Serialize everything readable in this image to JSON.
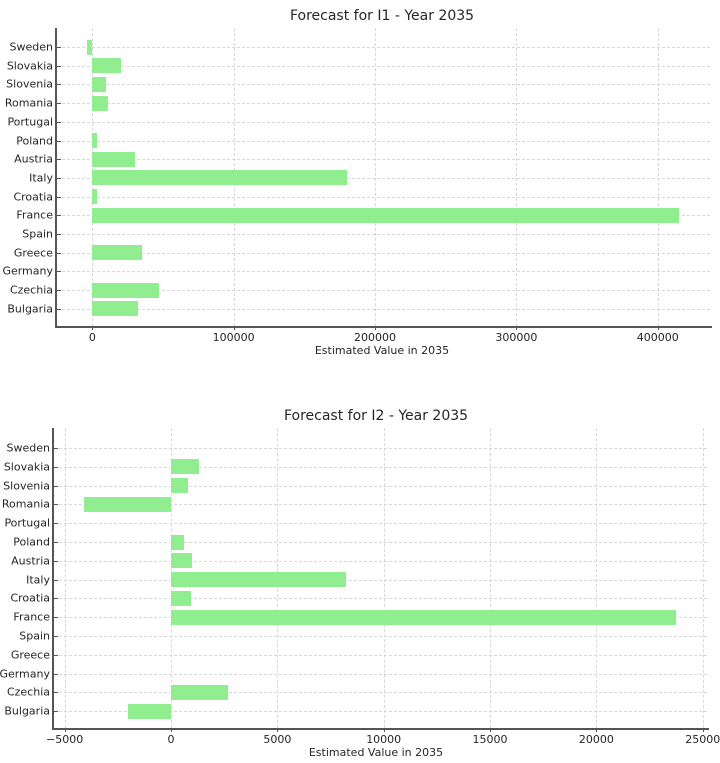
{
  "chart_data": [
    {
      "type": "bar",
      "orientation": "horizontal",
      "title": "Forecast for I1 - Year 2035",
      "xlabel": "Estimated Value in 2035",
      "ylabel": "",
      "categories": [
        "Bulgaria",
        "Czechia",
        "Germany",
        "Greece",
        "Spain",
        "France",
        "Croatia",
        "Italy",
        "Austria",
        "Poland",
        "Portugal",
        "Romania",
        "Slovenia",
        "Slovakia",
        "Sweden"
      ],
      "values": [
        32000,
        47000,
        0,
        35000,
        0,
        415000,
        3000,
        180000,
        30000,
        3000,
        0,
        11000,
        10000,
        20000,
        -4000
      ],
      "xlim": [
        -25000,
        437000
      ],
      "xticks": [
        0,
        100000,
        200000,
        300000,
        400000
      ],
      "xtick_labels": [
        "0",
        "100000",
        "200000",
        "300000",
        "400000"
      ],
      "grid": true,
      "bar_color": "#90ee90"
    },
    {
      "type": "bar",
      "orientation": "horizontal",
      "title": "Forecast for I2 - Year 2035",
      "xlabel": "Estimated Value in 2035",
      "ylabel": "",
      "categories": [
        "Bulgaria",
        "Czechia",
        "Germany",
        "Greece",
        "Spain",
        "France",
        "Croatia",
        "Italy",
        "Austria",
        "Poland",
        "Portugal",
        "Romania",
        "Slovenia",
        "Slovakia",
        "Sweden"
      ],
      "values": [
        -2000,
        2700,
        0,
        0,
        0,
        23750,
        950,
        8250,
        1000,
        600,
        0,
        -4100,
        800,
        1300,
        0
      ],
      "xlim": [
        -5500,
        25200
      ],
      "xticks": [
        -5000,
        0,
        5000,
        10000,
        15000,
        20000,
        25000
      ],
      "xtick_labels": [
        "−5000",
        "0",
        "5000",
        "10000",
        "15000",
        "20000",
        "25000"
      ],
      "grid": true,
      "bar_color": "#90ee90"
    }
  ]
}
